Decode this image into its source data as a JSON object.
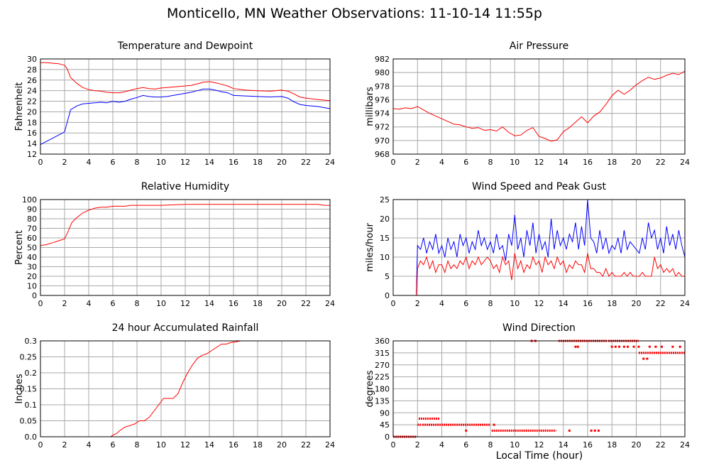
{
  "page_title": "Monticello, MN Weather Observations: 11-10-14 11:55p",
  "x_axis_label": "Local Time (hour)",
  "colors": {
    "red": "#ff0000",
    "blue": "#0000ff",
    "grid": "#a8a8a8",
    "frame": "#000000"
  },
  "chart_data": [
    {
      "id": "temp",
      "type": "line",
      "title": "Temperature and Dewpoint",
      "ylabel": "Fahrenheit",
      "xlim": [
        0,
        24
      ],
      "xticks": [
        "0",
        "2",
        "4",
        "6",
        "8",
        "10",
        "12",
        "14",
        "16",
        "18",
        "20",
        "22",
        "24"
      ],
      "ylim": [
        12,
        30
      ],
      "yticks": [
        "12",
        "14",
        "16",
        "18",
        "20",
        "22",
        "24",
        "26",
        "28",
        "30"
      ],
      "grid": true,
      "series": [
        {
          "color": "#ff0000",
          "x": [
            0,
            0.5,
            1,
            1.5,
            2,
            2.2,
            2.5,
            3,
            3.5,
            4,
            4.5,
            5,
            5.5,
            6,
            6.5,
            7,
            7.5,
            8,
            8.5,
            9,
            9.5,
            10,
            10.5,
            11,
            11.5,
            12,
            12.5,
            13,
            13.5,
            14,
            14.5,
            15,
            15.5,
            16,
            17,
            18,
            19,
            20,
            20.5,
            21,
            21.5,
            22,
            23,
            24
          ],
          "y": [
            29.3,
            29.3,
            29.2,
            29.1,
            28.8,
            28.2,
            26.5,
            25.4,
            24.6,
            24.2,
            24.0,
            23.9,
            23.7,
            23.6,
            23.6,
            23.8,
            24.1,
            24.4,
            24.6,
            24.4,
            24.3,
            24.5,
            24.6,
            24.7,
            24.8,
            24.9,
            25.0,
            25.3,
            25.6,
            25.7,
            25.5,
            25.2,
            24.9,
            24.4,
            24.1,
            24.0,
            23.9,
            24.1,
            23.9,
            23.4,
            22.8,
            22.6,
            22.3,
            22.1
          ]
        },
        {
          "color": "#0000ff",
          "x": [
            0,
            0.5,
            1,
            1.5,
            2,
            2.2,
            2.5,
            3,
            3.5,
            4,
            4.5,
            5,
            5.5,
            6,
            6.5,
            7,
            7.5,
            8,
            8.5,
            9,
            9.5,
            10,
            10.5,
            11,
            11.5,
            12,
            12.5,
            13,
            13.5,
            14,
            14.5,
            15,
            15.5,
            16,
            17,
            18,
            19,
            20,
            20.5,
            21,
            21.5,
            22,
            23,
            24
          ],
          "y": [
            13.8,
            14.4,
            15.0,
            15.6,
            16.2,
            17.9,
            20.4,
            21.1,
            21.5,
            21.6,
            21.7,
            21.8,
            21.7,
            22.0,
            21.8,
            22.0,
            22.4,
            22.7,
            23.1,
            22.9,
            22.8,
            22.8,
            22.9,
            23.1,
            23.3,
            23.5,
            23.7,
            24.0,
            24.3,
            24.3,
            24.1,
            23.8,
            23.6,
            23.1,
            23.0,
            22.9,
            22.8,
            22.9,
            22.6,
            21.9,
            21.4,
            21.2,
            21.0,
            20.6
          ]
        }
      ]
    },
    {
      "id": "pressure",
      "type": "line",
      "title": "Air Pressure",
      "ylabel": "millibars",
      "xlim": [
        0,
        24
      ],
      "xticks": [
        "0",
        "2",
        "4",
        "6",
        "8",
        "10",
        "12",
        "14",
        "16",
        "18",
        "20",
        "22",
        "24"
      ],
      "ylim": [
        968,
        982
      ],
      "yticks": [
        "968",
        "970",
        "972",
        "974",
        "976",
        "978",
        "980",
        "982"
      ],
      "grid": true,
      "series": [
        {
          "color": "#ff0000",
          "x": [
            0,
            0.5,
            1,
            1.5,
            2,
            2.5,
            3,
            3.5,
            4,
            4.5,
            5,
            5.5,
            6,
            6.5,
            7,
            7.5,
            8,
            8.5,
            9,
            9.5,
            10,
            10.5,
            11,
            11.5,
            12,
            12.5,
            13,
            13.5,
            14,
            14.5,
            15,
            15.5,
            16,
            16.5,
            17,
            17.5,
            18,
            18.5,
            19,
            19.5,
            20,
            20.5,
            21,
            21.5,
            22,
            22.5,
            23,
            23.5,
            24
          ],
          "y": [
            974.7,
            974.6,
            974.8,
            974.7,
            975.0,
            974.5,
            974.0,
            973.6,
            973.2,
            972.8,
            972.4,
            972.3,
            972.0,
            971.8,
            971.9,
            971.5,
            971.6,
            971.4,
            972.0,
            971.2,
            970.7,
            970.8,
            971.5,
            971.9,
            970.6,
            970.3,
            969.9,
            970.1,
            971.3,
            971.9,
            972.7,
            973.5,
            972.6,
            973.6,
            974.2,
            975.3,
            976.6,
            977.4,
            976.8,
            977.4,
            978.2,
            978.8,
            979.3,
            979.0,
            979.2,
            979.6,
            979.9,
            979.7,
            980.2
          ]
        }
      ]
    },
    {
      "id": "humidity",
      "type": "line",
      "title": "Relative Humidity",
      "ylabel": "Percent",
      "xlim": [
        0,
        24
      ],
      "xticks": [
        "0",
        "2",
        "4",
        "6",
        "8",
        "10",
        "12",
        "14",
        "16",
        "18",
        "20",
        "22",
        "24"
      ],
      "ylim": [
        0,
        100
      ],
      "yticks": [
        "0",
        "10",
        "20",
        "30",
        "40",
        "50",
        "60",
        "70",
        "80",
        "90",
        "100"
      ],
      "grid": true,
      "series": [
        {
          "color": "#ff0000",
          "x": [
            0,
            0.5,
            1,
            1.5,
            2,
            2.3,
            2.6,
            3,
            3.5,
            4,
            4.5,
            5,
            5.5,
            6,
            6.5,
            7,
            7.5,
            8,
            10,
            12,
            14,
            16,
            18,
            20,
            22,
            23,
            23.5,
            24
          ],
          "y": [
            52,
            53,
            55,
            57,
            59,
            67,
            76,
            81,
            86,
            89,
            91,
            92,
            92,
            93,
            93,
            93,
            94,
            94,
            94,
            95,
            95,
            95,
            95,
            95,
            95,
            95,
            94,
            94
          ]
        }
      ]
    },
    {
      "id": "wind",
      "type": "line",
      "title": "Wind Speed and Peak Gust",
      "ylabel": "miles/hour",
      "xlim": [
        0,
        24
      ],
      "xticks": [
        "0",
        "2",
        "4",
        "6",
        "8",
        "10",
        "12",
        "14",
        "16",
        "18",
        "20",
        "22",
        "24"
      ],
      "ylim": [
        0,
        25
      ],
      "yticks": [
        "0",
        "5",
        "10",
        "15",
        "20",
        "25"
      ],
      "grid": true,
      "series": [
        {
          "color": "#0000ff",
          "x": [
            0,
            1.9,
            2.0,
            2.25,
            2.5,
            2.75,
            3,
            3.25,
            3.5,
            3.75,
            4,
            4.25,
            4.5,
            4.75,
            5,
            5.25,
            5.5,
            5.75,
            6,
            6.25,
            6.5,
            6.75,
            7,
            7.25,
            7.5,
            7.75,
            8,
            8.25,
            8.5,
            8.75,
            9,
            9.25,
            9.5,
            9.75,
            10,
            10.25,
            10.5,
            10.75,
            11,
            11.25,
            11.5,
            11.75,
            12,
            12.25,
            12.5,
            12.75,
            13,
            13.25,
            13.5,
            13.75,
            14,
            14.25,
            14.5,
            14.75,
            15,
            15.25,
            15.5,
            15.75,
            16,
            16.25,
            16.5,
            16.75,
            17,
            17.25,
            17.5,
            17.75,
            18,
            18.25,
            18.5,
            18.75,
            19,
            19.25,
            19.5,
            19.75,
            20,
            20.25,
            20.5,
            20.75,
            21,
            21.25,
            21.5,
            21.75,
            22,
            22.25,
            22.5,
            22.75,
            23,
            23.25,
            23.5,
            23.75,
            24
          ],
          "y": [
            0,
            0,
            13,
            12,
            15,
            11,
            14,
            12,
            16,
            11,
            13,
            10,
            15,
            12,
            14,
            10,
            16,
            13,
            15,
            11,
            14,
            12,
            17,
            13,
            15,
            12,
            14,
            11,
            16,
            12,
            13,
            9,
            16,
            13,
            21,
            12,
            15,
            10,
            17,
            13,
            19,
            11,
            16,
            12,
            14,
            10,
            20,
            12,
            17,
            13,
            15,
            12,
            16,
            14,
            19,
            12,
            18,
            13,
            25,
            15,
            14,
            11,
            17,
            12,
            15,
            11,
            13,
            12,
            15,
            11,
            17,
            12,
            14,
            13,
            12,
            11,
            15,
            12,
            19,
            15,
            17,
            12,
            15,
            11,
            18,
            13,
            16,
            12,
            17,
            13,
            10
          ]
        },
        {
          "color": "#ff0000",
          "x": [
            0,
            1.9,
            2.0,
            2.25,
            2.5,
            2.75,
            3,
            3.25,
            3.5,
            3.75,
            4,
            4.25,
            4.5,
            4.75,
            5,
            5.25,
            5.5,
            5.75,
            6,
            6.25,
            6.5,
            6.75,
            7,
            7.25,
            7.5,
            7.75,
            8,
            8.25,
            8.5,
            8.75,
            9,
            9.25,
            9.5,
            9.75,
            10,
            10.25,
            10.5,
            10.75,
            11,
            11.25,
            11.5,
            11.75,
            12,
            12.25,
            12.5,
            12.75,
            13,
            13.25,
            13.5,
            13.75,
            14,
            14.25,
            14.5,
            14.75,
            15,
            15.25,
            15.5,
            15.75,
            16,
            16.25,
            16.5,
            16.75,
            17,
            17.25,
            17.5,
            17.75,
            18,
            18.25,
            18.5,
            18.75,
            19,
            19.25,
            19.5,
            19.75,
            20,
            20.25,
            20.5,
            20.75,
            21,
            21.25,
            21.5,
            21.75,
            22,
            22.25,
            22.5,
            22.75,
            23,
            23.25,
            23.5,
            23.75,
            24
          ],
          "y": [
            0,
            0,
            7,
            9,
            8,
            10,
            7,
            9,
            6,
            8,
            8,
            6,
            9,
            7,
            8,
            7,
            9,
            8,
            10,
            7,
            9,
            8,
            10,
            8,
            9,
            10,
            9,
            7,
            8,
            6,
            10,
            8,
            9,
            4,
            11,
            7,
            9,
            6,
            8,
            7,
            10,
            8,
            9,
            6,
            10,
            8,
            9,
            7,
            10,
            8,
            9,
            6,
            8,
            7,
            9,
            8,
            8,
            6,
            11,
            7,
            7,
            6,
            6,
            5,
            7,
            5,
            6,
            5,
            5,
            5,
            6,
            5,
            6,
            5,
            5,
            5,
            6,
            5,
            5,
            5,
            10,
            7,
            8,
            6,
            7,
            6,
            7,
            5,
            6,
            5,
            5
          ]
        }
      ]
    },
    {
      "id": "rain",
      "type": "line",
      "title": "24 hour Accumulated Rainfall",
      "ylabel": "Inches",
      "xlim": [
        0,
        24
      ],
      "xticks": [
        "0",
        "2",
        "4",
        "6",
        "8",
        "10",
        "12",
        "14",
        "16",
        "18",
        "20",
        "22",
        "24"
      ],
      "ylim": [
        0,
        0.3
      ],
      "yticks": [
        "0.0",
        "0.05",
        "0.1",
        "0.15",
        "0.2",
        "0.25",
        "0.3"
      ],
      "grid": true,
      "series": [
        {
          "color": "#ff0000",
          "x": [
            0,
            5.8,
            6.0,
            6.3,
            6.6,
            7.0,
            7.4,
            7.8,
            8.2,
            8.6,
            9.0,
            9.4,
            9.8,
            10.2,
            10.6,
            11.0,
            11.4,
            11.8,
            12.2,
            12.6,
            13.0,
            13.4,
            13.8,
            14.2,
            14.6,
            15.0,
            15.4,
            15.8,
            16.2,
            16.6,
            17.0,
            17.4,
            18.3
          ],
          "y": [
            0,
            0,
            0.005,
            0.01,
            0.02,
            0.03,
            0.035,
            0.04,
            0.05,
            0.05,
            0.06,
            0.08,
            0.1,
            0.12,
            0.12,
            0.12,
            0.135,
            0.17,
            0.2,
            0.225,
            0.245,
            0.255,
            0.26,
            0.27,
            0.28,
            0.29,
            0.29,
            0.295,
            0.297,
            0.3,
            0.3,
            0.3,
            0.3
          ]
        }
      ]
    },
    {
      "id": "winddir",
      "type": "scatter",
      "title": "Wind Direction",
      "ylabel": "degrees",
      "xlim": [
        0,
        24
      ],
      "xticks": [
        "0",
        "2",
        "4",
        "6",
        "8",
        "10",
        "12",
        "14",
        "16",
        "18",
        "20",
        "22",
        "24"
      ],
      "ylim": [
        0,
        360
      ],
      "yticks": [
        "0",
        "45",
        "90",
        "135",
        "180",
        "225",
        "270",
        "315",
        "360"
      ],
      "grid": true,
      "series": [
        {
          "color": "#ff0000",
          "segments": [
            {
              "x0": 0.0,
              "x1": 1.95,
              "y": 0
            },
            {
              "x0": 2.0,
              "x1": 2.3,
              "y": 45
            },
            {
              "x0": 2.1,
              "x1": 3.8,
              "y": 68
            },
            {
              "x0": 2.4,
              "x1": 8.0,
              "y": 45
            },
            {
              "x0": 8.1,
              "x1": 13.4,
              "y": 23
            },
            {
              "x0": 13.6,
              "x1": 17.6,
              "y": 360
            },
            {
              "x0": 17.7,
              "x1": 20.2,
              "y": 360
            },
            {
              "x0": 20.2,
              "x1": 24.0,
              "y": 315
            }
          ],
          "x": [
            6.0,
            8.3,
            11.4,
            11.7,
            14.5,
            15.0,
            15.2,
            16.3,
            16.6,
            16.9,
            18.0,
            18.3,
            18.6,
            19.0,
            19.3,
            19.8,
            20.2,
            20.6,
            20.9,
            21.1,
            21.6,
            22.1,
            23.0,
            23.6
          ],
          "y": [
            23,
            45,
            360,
            360,
            23,
            338,
            338,
            23,
            23,
            23,
            338,
            338,
            338,
            338,
            338,
            338,
            338,
            293,
            293,
            338,
            338,
            338,
            338,
            338
          ]
        }
      ]
    }
  ]
}
